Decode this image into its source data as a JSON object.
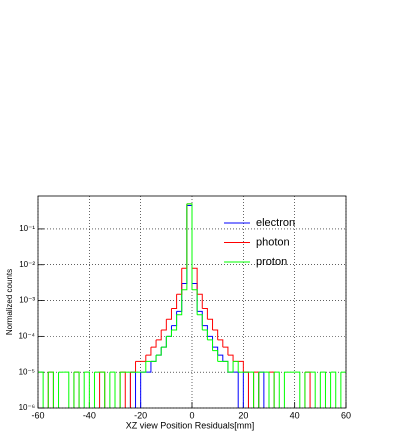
{
  "chart_data": {
    "type": "histogram",
    "x_label": "XZ view Position Residuals[mm]",
    "y_label": "Normalized counts",
    "bins": [
      -60,
      -58,
      -56,
      -54,
      -52,
      -50,
      -48,
      -46,
      -44,
      -42,
      -40,
      -38,
      -36,
      -34,
      -32,
      -30,
      -28,
      -26,
      -24,
      -22,
      -20,
      -18,
      -16,
      -14,
      -12,
      -10,
      -8,
      -6,
      -4,
      -2,
      0,
      2,
      4,
      6,
      8,
      10,
      12,
      14,
      16,
      18,
      20,
      22,
      24,
      26,
      28,
      30,
      32,
      34,
      36,
      38,
      40,
      42,
      44,
      46,
      48,
      50,
      52,
      54,
      56,
      58,
      60
    ],
    "series": [
      {
        "name": "electron",
        "color": "#0000ff",
        "values": [
          0,
          0,
          0,
          0,
          0,
          0,
          0,
          0,
          0,
          0,
          0,
          0,
          0,
          0,
          0,
          0,
          0,
          0,
          1e-05,
          0,
          1e-05,
          1e-05,
          2e-05,
          3e-05,
          5e-05,
          0.0001,
          0.0002,
          0.0005,
          0.003,
          0.45,
          0.003,
          0.0005,
          0.0002,
          0.0001,
          5e-05,
          3e-05,
          2e-05,
          1e-05,
          1e-05,
          0,
          1e-05,
          0,
          0,
          1e-05,
          0,
          0,
          0,
          0,
          0,
          0,
          0,
          0,
          0,
          0,
          0,
          0,
          0,
          0,
          0,
          0
        ]
      },
      {
        "name": "photon",
        "color": "#ff0000",
        "values": [
          0,
          0,
          1e-05,
          0,
          0,
          0,
          0,
          1e-05,
          0,
          0,
          0,
          0,
          1e-05,
          0,
          0,
          0,
          1e-05,
          0,
          1e-05,
          2e-05,
          2e-05,
          3e-05,
          5e-05,
          8e-05,
          0.00015,
          0.0003,
          0.0006,
          0.0015,
          0.008,
          0.5,
          0.008,
          0.0015,
          0.0006,
          0.0003,
          0.00015,
          8e-05,
          5e-05,
          3e-05,
          2e-05,
          2e-05,
          1e-05,
          0,
          1e-05,
          0,
          0,
          1e-05,
          0,
          0,
          0,
          0,
          0,
          0,
          1e-05,
          0,
          0,
          0,
          0,
          0,
          0,
          0
        ]
      },
      {
        "name": "proton",
        "color": "#00ff00",
        "values": [
          1e-05,
          0,
          1e-05,
          0,
          1e-05,
          1e-05,
          0,
          1e-05,
          0,
          1e-05,
          0,
          1e-05,
          1e-05,
          0,
          1e-05,
          0,
          1e-05,
          1e-05,
          1e-05,
          1e-05,
          1e-05,
          2e-05,
          2e-05,
          3e-05,
          5e-05,
          0.0001,
          0.00015,
          0.0004,
          0.002,
          0.5,
          0.002,
          0.0004,
          0.00015,
          8e-05,
          4e-05,
          2e-05,
          2e-05,
          1e-05,
          2e-05,
          1e-05,
          1e-05,
          1e-05,
          0,
          1e-05,
          1e-05,
          0,
          1e-05,
          0,
          1e-05,
          1e-05,
          1e-05,
          0,
          1e-05,
          1e-05,
          0,
          1e-05,
          0,
          1e-05,
          0,
          1e-05
        ]
      }
    ],
    "xlim": [
      -60,
      60
    ],
    "xticks": [
      -60,
      -40,
      -20,
      0,
      20,
      40,
      60
    ],
    "ylim": [
      1e-06,
      0.83
    ],
    "log_y": true,
    "yticks": [
      {
        "value": 1e-06,
        "label": "10⁻⁶"
      },
      {
        "value": 1e-05,
        "label": "10⁻⁵"
      },
      {
        "value": 0.0001,
        "label": "10⁻⁴"
      },
      {
        "value": 0.001,
        "label": "10⁻³"
      },
      {
        "value": 0.01,
        "label": "10⁻²"
      },
      {
        "value": 0.1,
        "label": "10⁻¹"
      }
    ],
    "grid": true,
    "legend": "upper-right"
  }
}
